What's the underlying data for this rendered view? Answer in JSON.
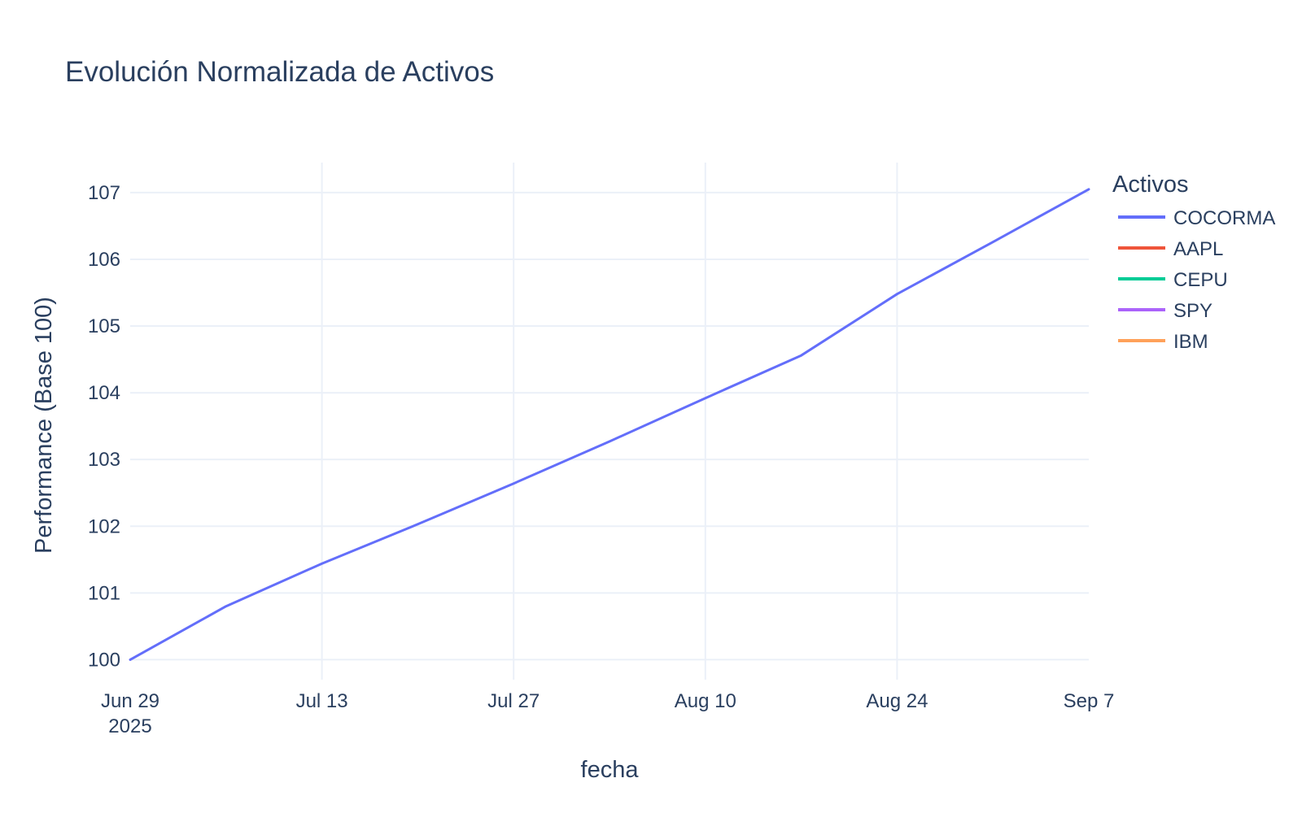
{
  "chart_data": {
    "type": "line",
    "title": "Evolución Normalizada de Activos",
    "xlabel": "fecha",
    "ylabel": "Performance (Base 100)",
    "x_ticks": [
      {
        "date": "2025-06-29",
        "label": "Jun 29",
        "sublabel": "2025"
      },
      {
        "date": "2025-07-13",
        "label": "Jul 13"
      },
      {
        "date": "2025-07-27",
        "label": "Jul 27"
      },
      {
        "date": "2025-08-10",
        "label": "Aug 10"
      },
      {
        "date": "2025-08-24",
        "label": "Aug 24"
      },
      {
        "date": "2025-09-07",
        "label": "Sep 7"
      }
    ],
    "y_ticks": [
      100,
      101,
      102,
      103,
      104,
      105,
      106,
      107
    ],
    "xlim": [
      "2025-06-29",
      "2025-09-07"
    ],
    "ylim": [
      99.7,
      107.45
    ],
    "grid": true,
    "legend": {
      "title": "Activos",
      "placement": "right"
    },
    "series": [
      {
        "name": "COCORMA",
        "color": "#636efa",
        "x": [
          "2025-06-29",
          "2025-07-06",
          "2025-07-13",
          "2025-07-20",
          "2025-07-27",
          "2025-08-03",
          "2025-08-10",
          "2025-08-17",
          "2025-08-24",
          "2025-08-31",
          "2025-09-07"
        ],
        "y": [
          100.0,
          100.8,
          101.44,
          102.03,
          102.64,
          103.27,
          103.92,
          104.56,
          105.48,
          106.26,
          107.05
        ]
      },
      {
        "name": "AAPL",
        "color": "#EF553B",
        "x": [],
        "y": []
      },
      {
        "name": "CEPU",
        "color": "#00cc96",
        "x": [],
        "y": []
      },
      {
        "name": "SPY",
        "color": "#ab63fa",
        "x": [],
        "y": []
      },
      {
        "name": "IBM",
        "color": "#FFA15A",
        "x": [],
        "y": []
      }
    ]
  }
}
